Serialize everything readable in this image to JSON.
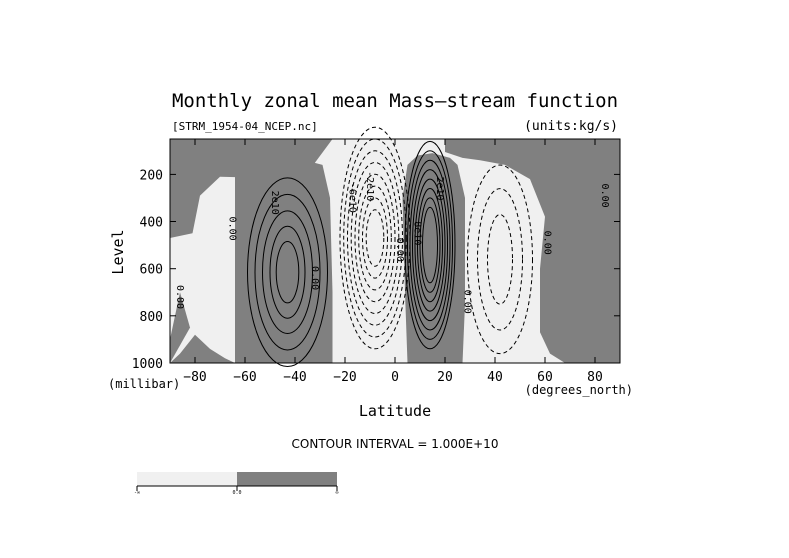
{
  "chart_data": {
    "type": "contour",
    "title": "Monthly zonal mean Mass—stream function",
    "file_label": "[STRM_1954-04_NCEP.nc]",
    "units_label": "(units:kg/s)",
    "xlabel": "Latitude",
    "xunit_label": "(degrees_north)",
    "ylabel": "Level",
    "yunit_label": "(millibar)",
    "xlim": [
      -90,
      90
    ],
    "ylim": [
      1000,
      50
    ],
    "y_inverted": true,
    "x_ticks": [
      -80,
      -60,
      -40,
      -20,
      0,
      20,
      40,
      60,
      80
    ],
    "x_tick_labels": [
      "−80",
      "−60",
      "−40",
      "−20",
      "0",
      "20",
      "40",
      "60",
      "80"
    ],
    "y_ticks": [
      200,
      400,
      600,
      800,
      1000
    ],
    "y_tick_labels": [
      "200",
      "400",
      "600",
      "800",
      "1000"
    ],
    "contour_interval_text": "CONTOUR INTERVAL = 1.000E+10",
    "contour_interval": 10000000000.0,
    "shading": {
      "negative": "#f0f0f0",
      "positive": "#808080"
    },
    "contour_labels": [
      {
        "text": "0.00",
        "lat": -65,
        "p": 430
      },
      {
        "text": "0.00",
        "lat": -86,
        "p": 720
      },
      {
        "text": "2e10",
        "lat": -48,
        "p": 320
      },
      {
        "text": "0.00",
        "lat": -32,
        "p": 640
      },
      {
        "text": "-6e10",
        "lat": -17,
        "p": 300
      },
      {
        "text": "-2e10",
        "lat": -10,
        "p": 250
      },
      {
        "text": "0.00",
        "lat": 2,
        "p": 520
      },
      {
        "text": "8e10",
        "lat": 9,
        "p": 450
      },
      {
        "text": "2e10",
        "lat": 18,
        "p": 260
      },
      {
        "text": "0.00",
        "lat": 29,
        "p": 740
      },
      {
        "text": "0.00",
        "lat": 61,
        "p": 490
      },
      {
        "text": "0.00",
        "lat": 84,
        "p": 290
      }
    ],
    "cells": [
      {
        "sign": "positive",
        "lat_range": [
          -60,
          -26
        ],
        "center": [
          -43,
          620
        ],
        "peak": 50000000000.0
      },
      {
        "sign": "negative",
        "lat_range": [
          -26,
          4
        ],
        "center": [
          -8,
          450
        ],
        "peak": -80000000000.0
      },
      {
        "sign": "positive",
        "lat_range": [
          4,
          25
        ],
        "center": [
          14,
          500
        ],
        "peak": 80000000000.0
      },
      {
        "sign": "negative",
        "lat_range": [
          28,
          58
        ],
        "center": [
          42,
          560
        ],
        "peak": -30000000000.0
      }
    ],
    "colorbar": {
      "labels": [
        "-∞",
        "0.0",
        "∞"
      ]
    }
  }
}
